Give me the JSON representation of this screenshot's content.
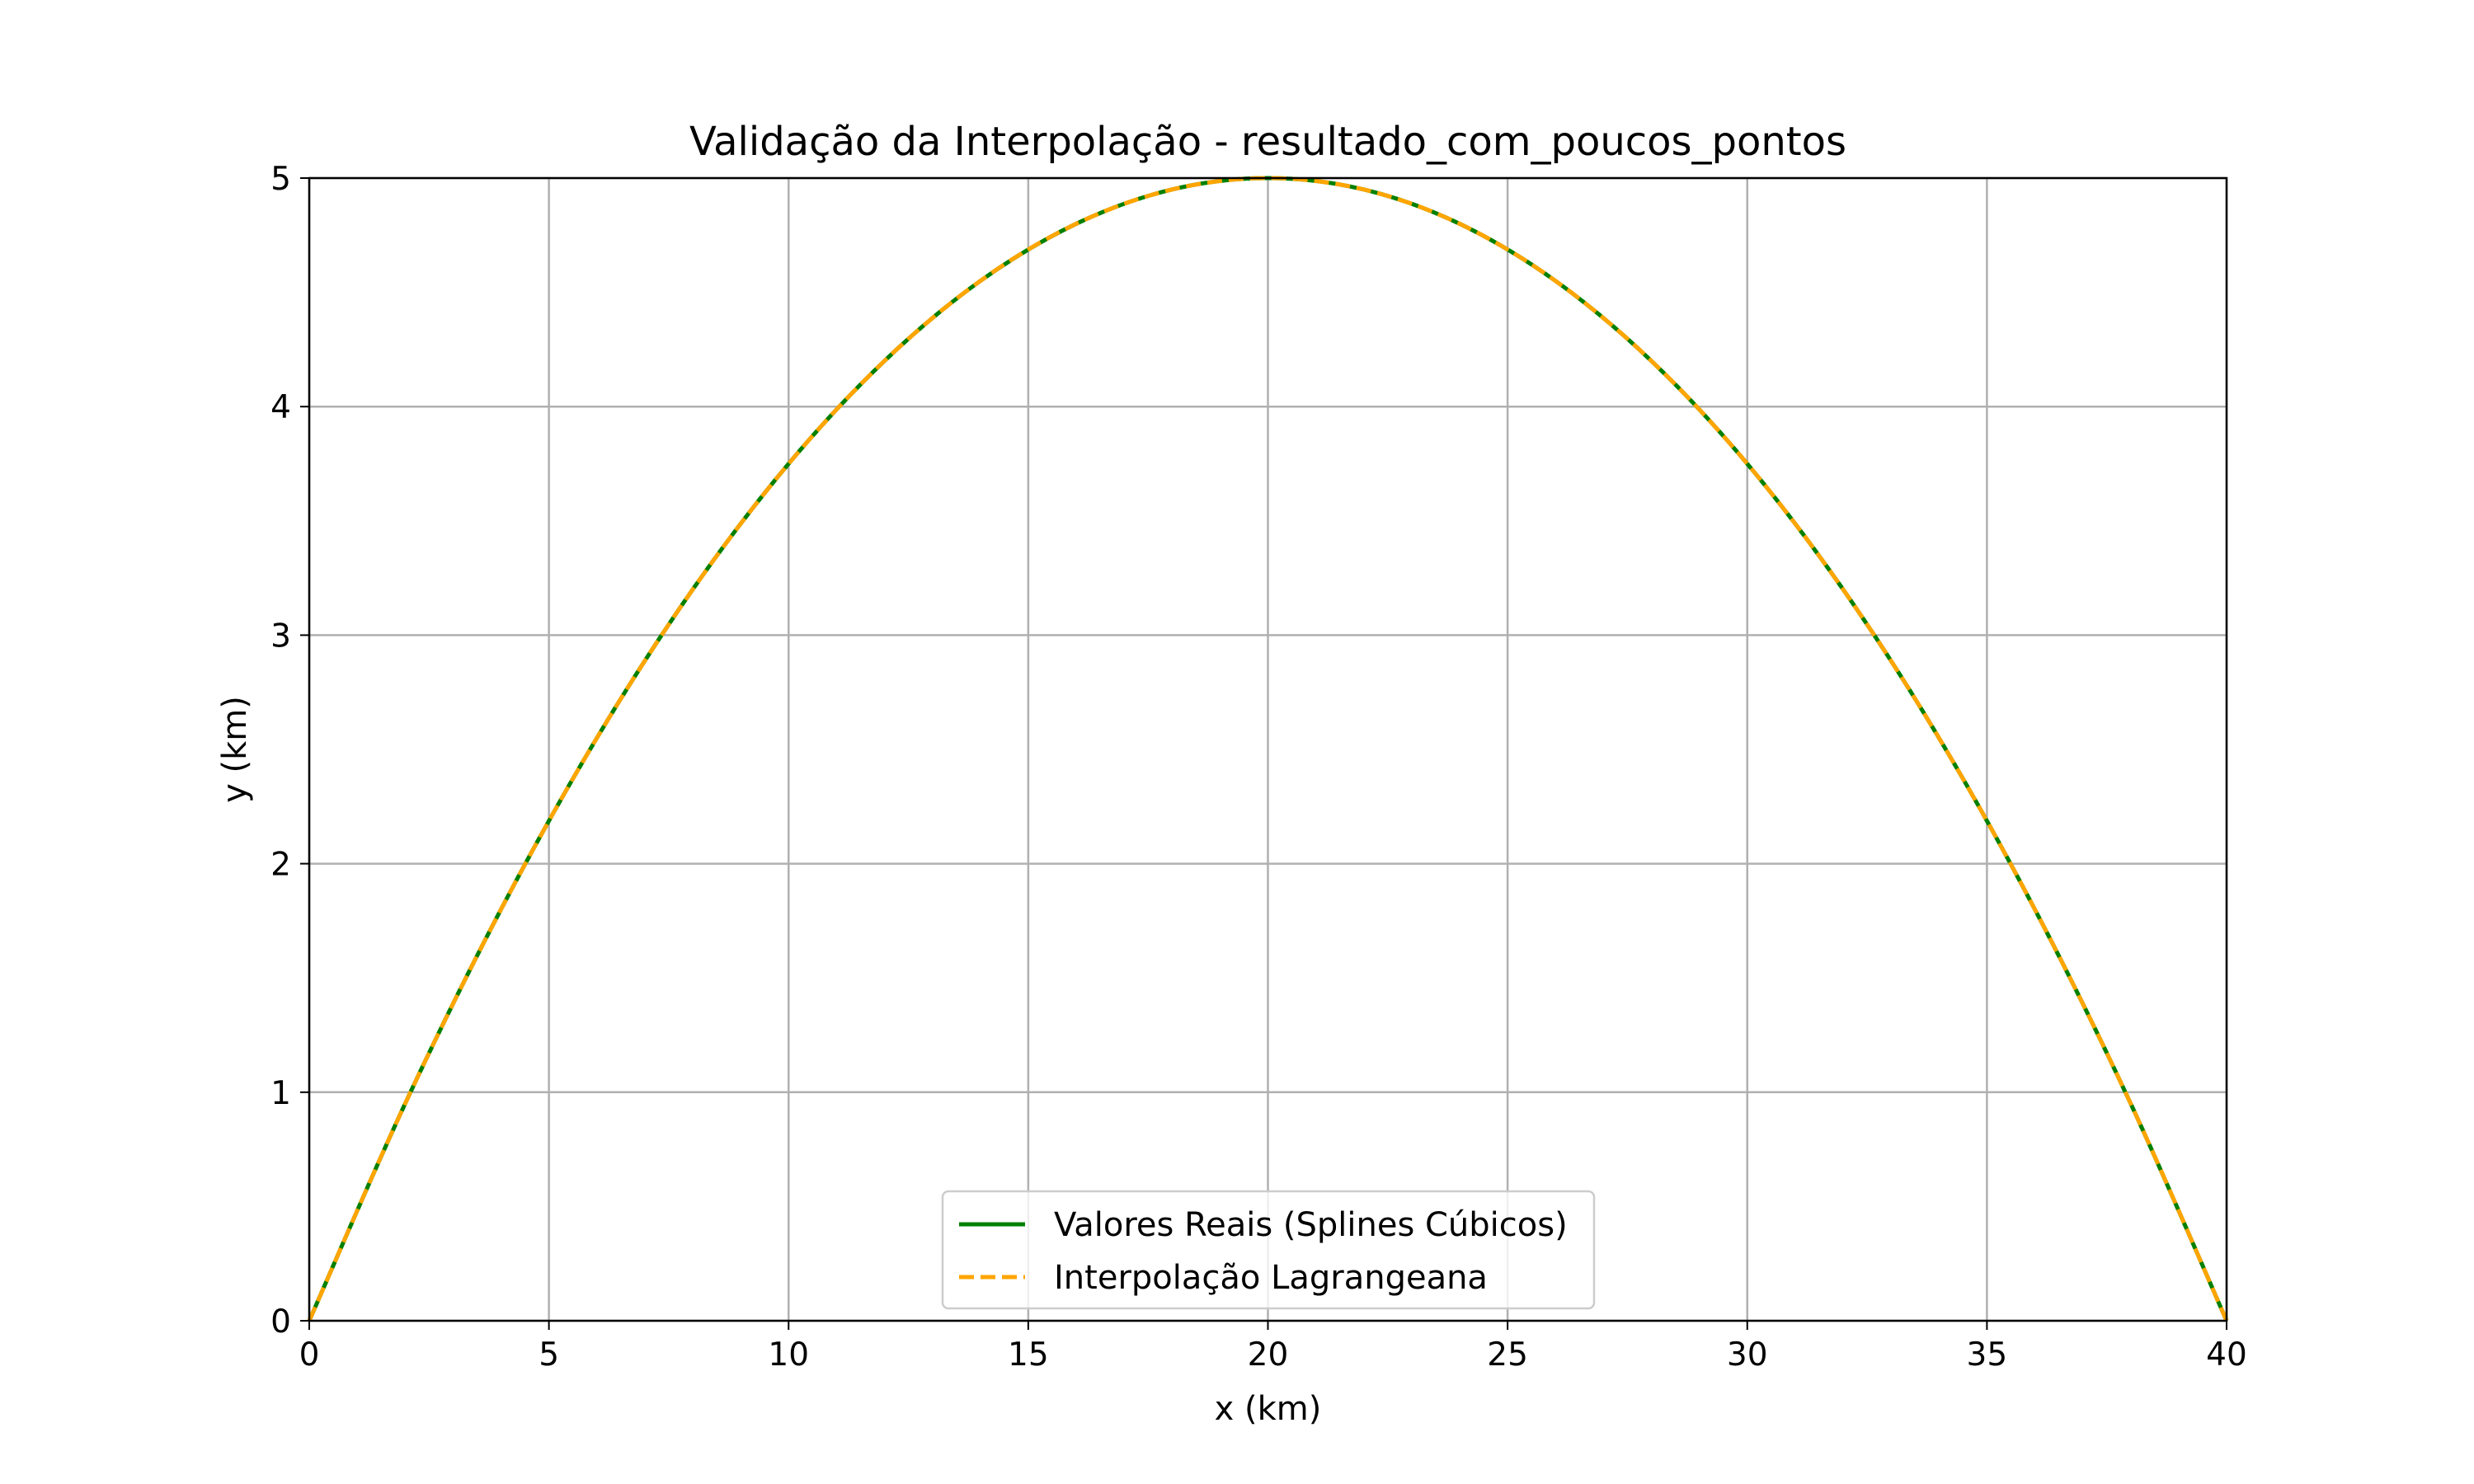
{
  "chart_data": {
    "type": "line",
    "title": "Validação da Interpolação - resultado_com_poucos_pontos",
    "xlabel": "x (km)",
    "ylabel": "y (km)",
    "xlim": [
      0,
      40
    ],
    "ylim": [
      0,
      5
    ],
    "xticks": [
      0,
      5,
      10,
      15,
      20,
      25,
      30,
      35,
      40
    ],
    "yticks": [
      0,
      1,
      2,
      3,
      4,
      5
    ],
    "grid": true,
    "legend_position": "lower-center",
    "x": [
      0,
      2,
      4,
      6,
      8,
      10,
      12,
      14,
      16,
      18,
      20,
      22,
      24,
      26,
      28,
      30,
      32,
      34,
      36,
      38,
      40
    ],
    "series": [
      {
        "name": "Valores Reais (Splines Cúbicos)",
        "color": "#008000",
        "style": "solid",
        "values": [
          0,
          0.95,
          1.8,
          2.55,
          3.2,
          3.75,
          4.2,
          4.55,
          4.8,
          4.95,
          5.0,
          4.95,
          4.8,
          4.55,
          4.2,
          3.75,
          3.2,
          2.55,
          1.8,
          0.95,
          0
        ]
      },
      {
        "name": "Interpolação Lagrangeana",
        "color": "#ffa500",
        "style": "dashed",
        "values": [
          0,
          0.95,
          1.8,
          2.55,
          3.2,
          3.75,
          4.2,
          4.55,
          4.8,
          4.95,
          5.0,
          4.95,
          4.8,
          4.55,
          4.2,
          3.75,
          3.2,
          2.55,
          1.8,
          0.95,
          0
        ]
      }
    ]
  }
}
